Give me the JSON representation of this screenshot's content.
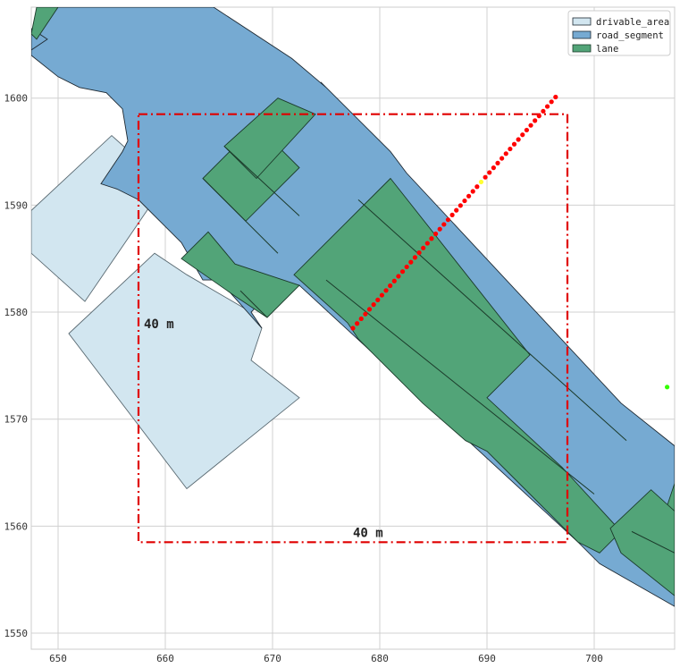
{
  "colors": {
    "drivable_area": "#d2e6f0",
    "road_segment": "#76aad2",
    "lane": "#52a478",
    "lane_divider": "#1b3a2a",
    "box": "#e00000",
    "trajectory": "#ff0000",
    "highlight_point": "#ffff33",
    "green_point": "#33ff00",
    "grid": "#d0d0d0"
  },
  "axes": {
    "xlim": [
      647.5,
      707.5
    ],
    "ylim": [
      1548.5,
      1608.5
    ],
    "xticks": [
      "650",
      "660",
      "670",
      "680",
      "690",
      "700"
    ],
    "yticks": [
      "1550",
      "1560",
      "1570",
      "1580",
      "1590",
      "1600"
    ],
    "grid": true
  },
  "legend": {
    "placement": "top-right",
    "items": [
      {
        "label": "drivable_area",
        "layer": "drivable_area"
      },
      {
        "label": "road_segment",
        "layer": "road_segment"
      },
      {
        "label": "lane",
        "layer": "lane"
      }
    ]
  },
  "annotations": {
    "box_x": [
      657.5,
      697.5
    ],
    "box_y": [
      1558.5,
      1598.5
    ],
    "width_label": "40 m",
    "height_label": "40 m",
    "width_label_at": [
      677.5,
      1559.0
    ],
    "height_label_at": [
      658.0,
      1578.5
    ]
  },
  "trajectory": {
    "start": [
      677.5,
      1578.5
    ],
    "end": [
      696.4,
      1600.1
    ],
    "count": 50,
    "highlight_index": 31
  },
  "green_point": [
    706.8,
    1573.0
  ],
  "layers": {
    "drivable_area": [
      [
        [
          647.5,
          1589.5
        ],
        [
          655,
          1596.5
        ],
        [
          660,
          1592
        ],
        [
          652.5,
          1581.0
        ],
        [
          647.5,
          1585.5
        ]
      ],
      [
        [
          651,
          1578
        ],
        [
          659,
          1585.5
        ],
        [
          662,
          1583.5
        ],
        [
          668,
          1580
        ],
        [
          669,
          1578.5
        ],
        [
          668,
          1575.5
        ],
        [
          672.5,
          1572
        ],
        [
          662,
          1563.5
        ]
      ]
    ],
    "road_segment": [
      [
        [
          650.0,
          1608.5
        ],
        [
          664.5,
          1608.5
        ],
        [
          671.8,
          1603.7
        ],
        [
          675,
          1601
        ],
        [
          674.5,
          1601.5
        ],
        [
          681,
          1595
        ],
        [
          682.5,
          1593
        ],
        [
          702.5,
          1571.5
        ],
        [
          707.5,
          1567.5
        ],
        [
          707.5,
          1552.5
        ],
        [
          700.5,
          1556.5
        ],
        [
          698.5,
          1558.5
        ],
        [
          685.5,
          1570.5
        ],
        [
          672.5,
          1582.5
        ],
        [
          670,
          1580.5
        ],
        [
          668.5,
          1580.5
        ],
        [
          668,
          1580
        ],
        [
          669,
          1578.5
        ],
        [
          665.0,
          1583.0
        ],
        [
          663.5,
          1583.0
        ],
        [
          661.5,
          1586.5
        ],
        [
          657.5,
          1590.5
        ],
        [
          655.5,
          1591.5
        ],
        [
          654,
          1592
        ],
        [
          656,
          1595
        ],
        [
          656.5,
          1596
        ],
        [
          656,
          1599
        ],
        [
          654.5,
          1600.5
        ],
        [
          652,
          1601
        ],
        [
          650,
          1602
        ],
        [
          647.5,
          1604
        ],
        [
          647.5,
          1606
        ]
      ],
      [
        [
          647.5,
          1606.5
        ],
        [
          649,
          1605.5
        ],
        [
          647.5,
          1604.5
        ]
      ]
    ],
    "lane": [
      [
        [
          647.5,
          1606.0
        ],
        [
          648,
          1608.5
        ],
        [
          650,
          1608.5
        ],
        [
          648,
          1605.5
        ]
      ],
      [
        [
          668.5,
          1597.5
        ],
        [
          663.5,
          1592.5
        ],
        [
          667.5,
          1588.5
        ],
        [
          672.5,
          1593.5
        ]
      ],
      [
        [
          670.5,
          1600
        ],
        [
          665.5,
          1595.5
        ],
        [
          668.5,
          1592.5
        ],
        [
          674,
          1598.5
        ]
      ],
      [
        [
          664,
          1587.5
        ],
        [
          666.5,
          1584.5
        ],
        [
          672.5,
          1582.5
        ],
        [
          669.5,
          1579.5
        ],
        [
          666.5,
          1581.5
        ],
        [
          661.5,
          1585
        ]
      ],
      [
        [
          681,
          1592.5
        ],
        [
          672,
          1583.5
        ],
        [
          677,
          1579
        ],
        [
          678,
          1577.5
        ],
        [
          684.0,
          1571.5
        ],
        [
          688,
          1568
        ],
        [
          690,
          1567
        ],
        [
          693.0,
          1564.0
        ],
        [
          698.5,
          1558.5
        ],
        [
          700.5,
          1557.5
        ],
        [
          702.5,
          1559.5
        ],
        [
          697.0,
          1565.5
        ],
        [
          690.0,
          1572.0
        ],
        [
          694,
          1576.0
        ]
      ],
      [
        [
          707.5,
          1564
        ],
        [
          706.5,
          1561
        ],
        [
          704.5,
          1559
        ],
        [
          707.5,
          1556.5
        ]
      ],
      [
        [
          701.5,
          1559.8
        ],
        [
          705.3,
          1563.4
        ],
        [
          707.5,
          1561.4
        ],
        [
          707.5,
          1553.5
        ],
        [
          702.5,
          1557.5
        ]
      ]
    ],
    "lane_dividers": [
      [
        [
          663.5,
          1592.5
        ],
        [
          670.5,
          1585.5
        ]
      ],
      [
        [
          665.5,
          1595.5
        ],
        [
          672.5,
          1589
        ]
      ],
      [
        [
          675,
          1583.0
        ],
        [
          700,
          1563.0
        ]
      ],
      [
        [
          678.0,
          1590.5
        ],
        [
          703.0,
          1568.0
        ]
      ],
      [
        [
          669.5,
          1579.5
        ],
        [
          667,
          1582
        ]
      ],
      [
        [
          707.5,
          1557.5
        ],
        [
          703.5,
          1559.5
        ]
      ]
    ]
  }
}
